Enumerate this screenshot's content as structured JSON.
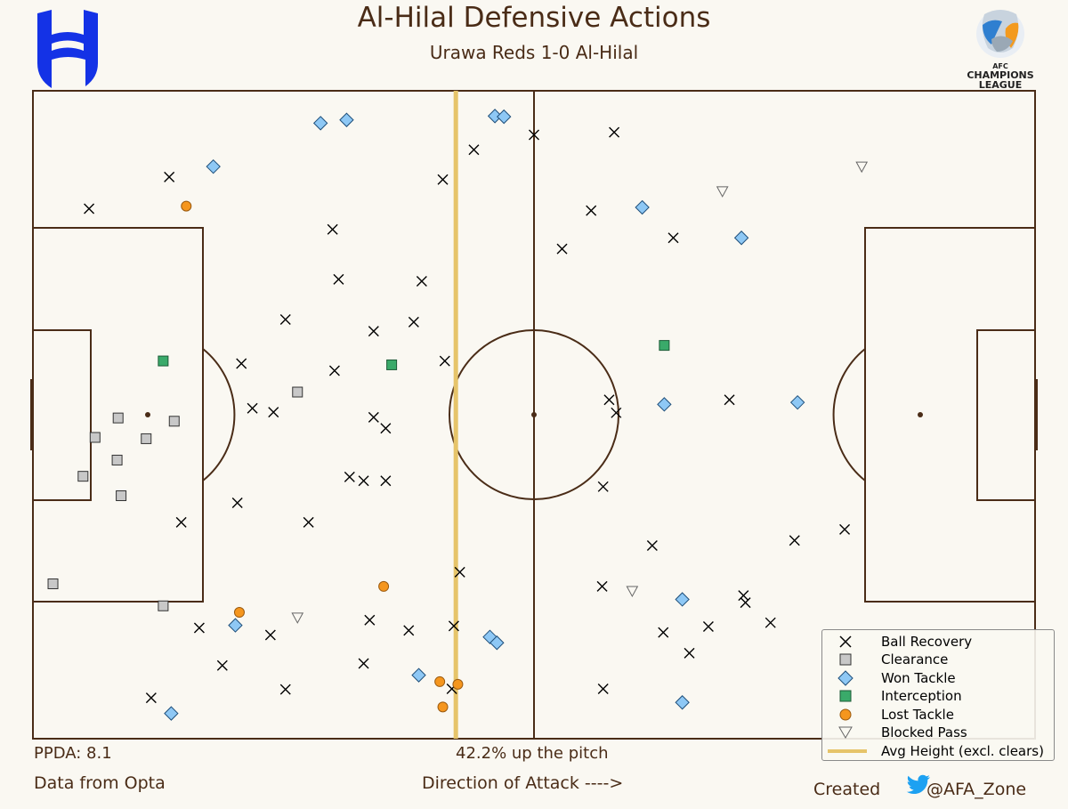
{
  "header": {
    "title": "Al-Hilal Defensive Actions",
    "subtitle": "Urawa Reds 1-0 Al-Hilal"
  },
  "footer": {
    "ppda": "PPDA: 8.1",
    "height_pct": "42.2% up the pitch",
    "source": "Data from Opta",
    "direction": "Direction of Attack ---->",
    "created": "Created",
    "handle": "@AFA_Zone"
  },
  "logos": {
    "left": "al-hilal-crest",
    "right_text_1": "AFC",
    "right_text_2": "CHAMPIONS",
    "right_text_3": "LEAGUE"
  },
  "colors": {
    "pitch_lines": "#4a2c17",
    "background": "#faf8f2",
    "avg_line": "#e6c46a",
    "won_tackle": "#8ec8f5",
    "clearance": "#c8c8c8",
    "interception": "#3aaa6a",
    "lost_tackle": "#f5961e",
    "hilal_blue": "#1432e6"
  },
  "chart_data": {
    "type": "scatter",
    "title": "Al-Hilal Defensive Actions",
    "subtitle": "Urawa Reds 1-0 Al-Hilal",
    "xlim": [
      0,
      100
    ],
    "ylim": [
      0,
      100
    ],
    "legend_position": "bottom-right",
    "avg_height": 42.2,
    "avg_height_label": "Avg Height (excl. clears)",
    "legend": [
      "Ball Recovery",
      "Clearance",
      "Won Tackle",
      "Interception",
      "Lost Tackle",
      "Blocked Pass",
      "Avg Height (excl. clears)"
    ],
    "series": [
      {
        "name": "Ball Recovery",
        "marker": "x",
        "points": [
          [
            5.6,
            81.8
          ],
          [
            13.6,
            86.7
          ],
          [
            30.5,
            70.9
          ],
          [
            29.9,
            78.6
          ],
          [
            40.9,
            86.3
          ],
          [
            44.0,
            90.9
          ],
          [
            50.0,
            93.2
          ],
          [
            52.8,
            75.6
          ],
          [
            58.0,
            93.6
          ],
          [
            55.7,
            81.5
          ],
          [
            63.9,
            77.3
          ],
          [
            30.1,
            56.8
          ],
          [
            34.0,
            62.9
          ],
          [
            38.8,
            70.6
          ],
          [
            38.0,
            64.3
          ],
          [
            25.2,
            64.7
          ],
          [
            21.9,
            51.0
          ],
          [
            41.1,
            58.3
          ],
          [
            20.8,
            57.9
          ],
          [
            24.0,
            50.4
          ],
          [
            34.0,
            49.6
          ],
          [
            35.2,
            47.9
          ],
          [
            14.8,
            33.4
          ],
          [
            20.4,
            36.4
          ],
          [
            27.5,
            33.4
          ],
          [
            31.6,
            40.4
          ],
          [
            33.0,
            39.8
          ],
          [
            35.2,
            39.8
          ],
          [
            42.6,
            25.7
          ],
          [
            61.8,
            29.8
          ],
          [
            56.9,
            38.9
          ],
          [
            58.2,
            50.3
          ],
          [
            57.5,
            52.3
          ],
          [
            69.5,
            52.3
          ],
          [
            81.0,
            32.3
          ],
          [
            76.0,
            30.6
          ],
          [
            16.6,
            17.1
          ],
          [
            23.7,
            16.0
          ],
          [
            33.6,
            18.3
          ],
          [
            37.5,
            16.7
          ],
          [
            42.0,
            17.4
          ],
          [
            33.0,
            11.6
          ],
          [
            18.9,
            11.3
          ],
          [
            25.2,
            7.6
          ],
          [
            11.8,
            6.3
          ],
          [
            41.8,
            7.7
          ],
          [
            56.9,
            7.7
          ],
          [
            65.5,
            13.2
          ],
          [
            62.9,
            16.4
          ],
          [
            67.4,
            17.3
          ],
          [
            71.1,
            21.0
          ],
          [
            73.6,
            17.9
          ],
          [
            70.9,
            22.1
          ],
          [
            56.8,
            23.5
          ]
        ]
      },
      {
        "name": "Clearance",
        "marker": "square",
        "points": [
          [
            26.4,
            53.5
          ],
          [
            8.5,
            49.5
          ],
          [
            14.1,
            49.0
          ],
          [
            6.2,
            46.5
          ],
          [
            11.3,
            46.3
          ],
          [
            8.4,
            43.0
          ],
          [
            5.0,
            40.5
          ],
          [
            8.8,
            37.5
          ],
          [
            2.0,
            23.9
          ],
          [
            13.0,
            20.5
          ]
        ]
      },
      {
        "name": "Won Tackle",
        "marker": "diamond",
        "points": [
          [
            28.7,
            95.0
          ],
          [
            31.3,
            95.5
          ],
          [
            46.1,
            96.1
          ],
          [
            47.0,
            96.0
          ],
          [
            18.0,
            88.3
          ],
          [
            60.8,
            82.0
          ],
          [
            70.7,
            77.3
          ],
          [
            63.0,
            51.6
          ],
          [
            76.3,
            51.9
          ],
          [
            20.2,
            17.5
          ],
          [
            45.6,
            15.7
          ],
          [
            46.3,
            14.8
          ],
          [
            38.5,
            9.8
          ],
          [
            64.8,
            21.5
          ],
          [
            64.8,
            5.6
          ],
          [
            13.8,
            3.9
          ]
        ]
      },
      {
        "name": "Interception",
        "marker": "square",
        "points": [
          [
            13.0,
            58.3
          ],
          [
            35.8,
            57.7
          ],
          [
            63.0,
            60.7
          ]
        ]
      },
      {
        "name": "Lost Tackle",
        "marker": "circle",
        "points": [
          [
            15.3,
            82.2
          ],
          [
            35.0,
            23.5
          ],
          [
            20.6,
            19.5
          ],
          [
            40.6,
            8.8
          ],
          [
            42.4,
            8.4
          ],
          [
            40.9,
            4.9
          ]
        ]
      },
      {
        "name": "Blocked Pass",
        "marker": "triangle",
        "points": [
          [
            82.7,
            88.3
          ],
          [
            68.8,
            84.5
          ],
          [
            59.8,
            22.8
          ],
          [
            26.4,
            18.7
          ]
        ]
      }
    ]
  }
}
